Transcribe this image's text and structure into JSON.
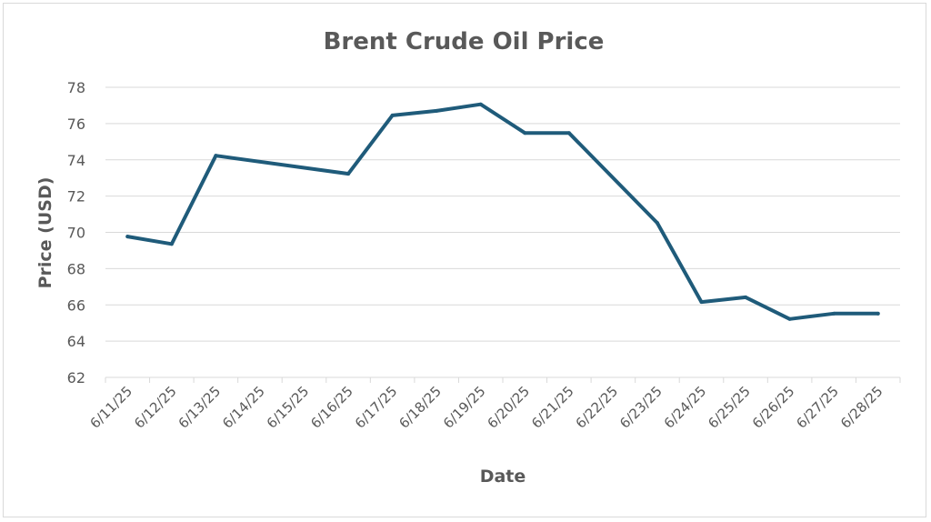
{
  "chart_data": {
    "type": "line",
    "title": "Brent Crude Oil Price",
    "xlabel": "Date",
    "ylabel": "Price (USD)",
    "ylim": [
      62,
      78
    ],
    "yticks": [
      62,
      64,
      66,
      68,
      70,
      72,
      74,
      76,
      78
    ],
    "grid": true,
    "legend": "none",
    "categories": [
      "6/11/25",
      "6/12/25",
      "6/13/25",
      "6/14/25",
      "6/15/25",
      "6/16/25",
      "6/17/25",
      "6/18/25",
      "6/19/25",
      "6/20/25",
      "6/21/25",
      "6/22/25",
      "6/23/25",
      "6/24/25",
      "6/25/25",
      "6/26/25",
      "6/27/25",
      "6/28/25"
    ],
    "series": [
      {
        "values": [
          69.77,
          69.36,
          74.23,
          null,
          null,
          73.23,
          76.45,
          76.7,
          77.06,
          75.48,
          75.48,
          null,
          70.52,
          66.16,
          66.42,
          65.22,
          65.52,
          65.52
        ],
        "color": "#1f5b7a"
      }
    ]
  }
}
